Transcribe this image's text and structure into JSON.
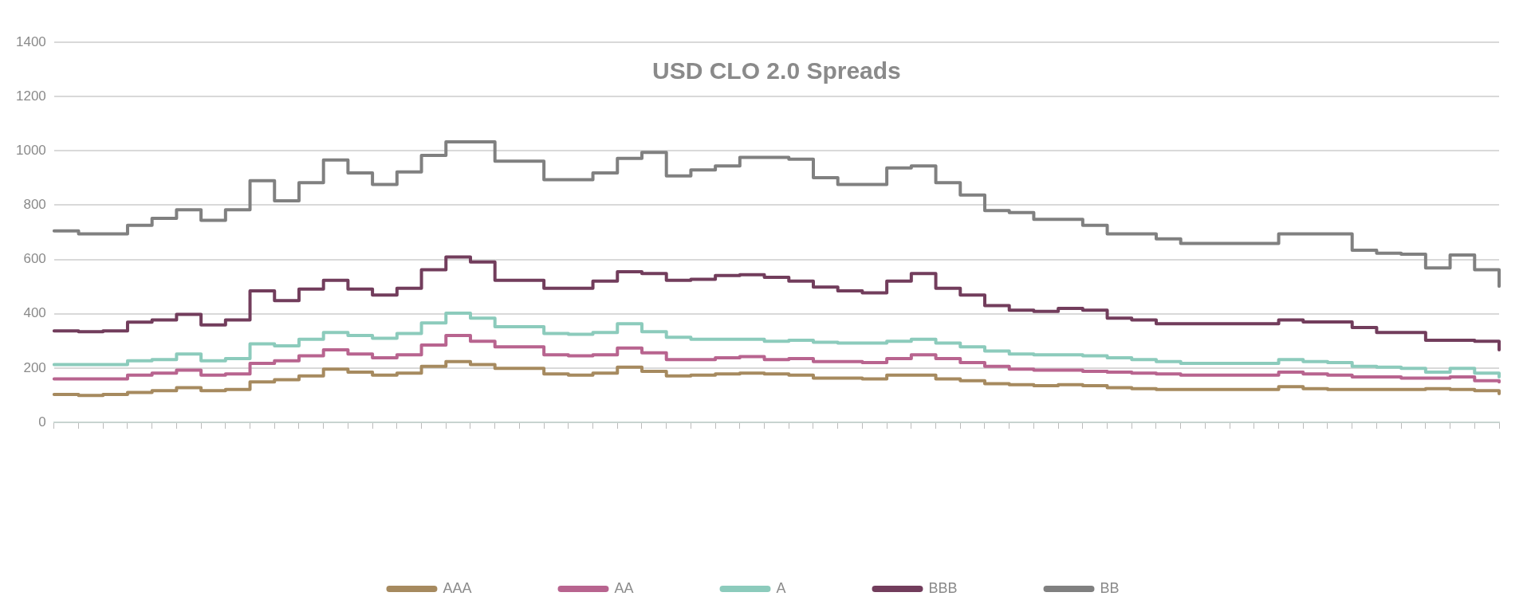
{
  "chart_data": {
    "type": "step",
    "title": "USD CLO 2.0 Spreads",
    "categories": [
      null,
      null,
      null,
      null,
      null,
      null,
      null,
      null,
      null,
      null,
      null,
      null,
      null,
      null,
      null,
      null,
      null,
      null,
      null,
      null,
      null,
      null,
      null,
      null,
      null,
      null,
      null,
      null,
      null,
      null,
      null,
      null,
      null,
      null,
      null,
      null,
      null,
      null,
      null,
      null,
      null,
      null,
      null,
      null,
      null,
      null,
      null,
      null,
      null,
      null,
      null,
      null,
      null,
      null,
      null,
      null,
      null,
      null,
      null,
      null
    ],
    "ylim": [
      0,
      1400
    ],
    "yticks": [
      0,
      200,
      400,
      600,
      800,
      1000,
      1200,
      1400
    ],
    "grid": "y",
    "legend": "bottom",
    "marker": "none",
    "line_style": "solid",
    "series": [
      {
        "name": "AAA",
        "color": "#a68a5f",
        "values": [
          103,
          99,
          103,
          110,
          117,
          128,
          117,
          121,
          149,
          157,
          171,
          196,
          185,
          174,
          181,
          206,
          224,
          213,
          199,
          199,
          178,
          174,
          181,
          203,
          188,
          171,
          174,
          178,
          181,
          178,
          174,
          163,
          163,
          160,
          174,
          174,
          160,
          153,
          142,
          139,
          135,
          139,
          135,
          128,
          124,
          121,
          121,
          121,
          121,
          121,
          131,
          124,
          121,
          121,
          121,
          121,
          124,
          121,
          117,
          106
        ]
      },
      {
        "name": "AA",
        "color": "#b8648f",
        "values": [
          160,
          160,
          160,
          174,
          181,
          192,
          174,
          178,
          217,
          227,
          245,
          267,
          252,
          238,
          249,
          285,
          320,
          299,
          278,
          278,
          249,
          245,
          249,
          274,
          256,
          231,
          231,
          238,
          242,
          231,
          235,
          224,
          224,
          220,
          235,
          249,
          235,
          220,
          206,
          196,
          192,
          192,
          188,
          185,
          181,
          178,
          174,
          174,
          174,
          174,
          185,
          178,
          174,
          167,
          167,
          163,
          163,
          167,
          153,
          149
        ]
      },
      {
        "name": "A",
        "color": "#8ccbbc",
        "values": [
          213,
          213,
          213,
          227,
          231,
          252,
          227,
          235,
          289,
          282,
          306,
          331,
          320,
          310,
          327,
          366,
          402,
          384,
          352,
          352,
          327,
          324,
          331,
          363,
          334,
          313,
          306,
          306,
          306,
          299,
          302,
          295,
          292,
          292,
          299,
          306,
          292,
          278,
          263,
          252,
          249,
          249,
          245,
          238,
          231,
          224,
          217,
          217,
          217,
          217,
          231,
          224,
          220,
          206,
          203,
          199,
          185,
          199,
          181,
          167
        ]
      },
      {
        "name": "BBB",
        "color": "#723d5c",
        "values": [
          337,
          334,
          337,
          369,
          377,
          398,
          359,
          377,
          484,
          448,
          491,
          523,
          491,
          469,
          494,
          562,
          609,
          591,
          523,
          523,
          494,
          494,
          520,
          555,
          548,
          523,
          527,
          541,
          544,
          534,
          520,
          498,
          484,
          477,
          520,
          548,
          494,
          469,
          430,
          413,
          409,
          420,
          413,
          384,
          377,
          363,
          363,
          363,
          363,
          363,
          377,
          370,
          370,
          349,
          331,
          331,
          302,
          302,
          299,
          267
        ]
      },
      {
        "name": "BB",
        "color": "#808080",
        "values": [
          705,
          694,
          694,
          726,
          751,
          783,
          744,
          783,
          890,
          816,
          883,
          966,
          919,
          876,
          922,
          983,
          1033,
          1033,
          962,
          962,
          894,
          894,
          919,
          972,
          994,
          908,
          930,
          944,
          976,
          976,
          969,
          901,
          876,
          876,
          937,
          944,
          883,
          837,
          780,
          773,
          748,
          748,
          726,
          694,
          694,
          676,
          659,
          659,
          659,
          659,
          694,
          694,
          694,
          634,
          623,
          619,
          569,
          616,
          562,
          501
        ]
      }
    ]
  }
}
